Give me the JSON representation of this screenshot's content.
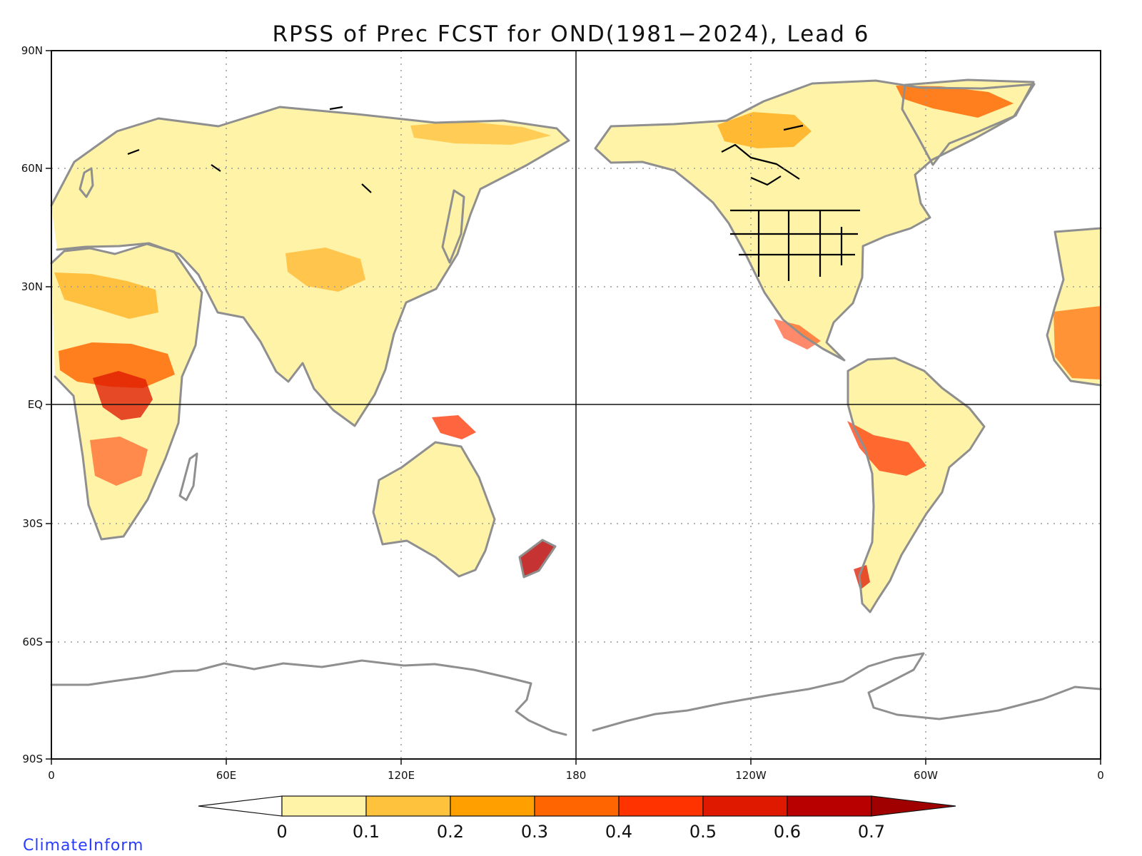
{
  "title": "RPSS of Prec FCST for OND(1981−2024), Lead 6",
  "credit": "ClimateInform",
  "y_ticks": [
    "90N",
    "60N",
    "30N",
    "EQ",
    "30S",
    "60S",
    "90S"
  ],
  "x_ticks": [
    "0",
    "60E",
    "120E",
    "180",
    "120W",
    "60W",
    "0"
  ],
  "colorbar": {
    "labels": [
      "0",
      "0.1",
      "0.2",
      "0.3",
      "0.4",
      "0.5",
      "0.6",
      "0.7"
    ],
    "colors": [
      "#fff3a8",
      "#ffc23d",
      "#ff9f00",
      "#ff6500",
      "#ff3300",
      "#df1800",
      "#b80000",
      "#a00000"
    ],
    "below_color": "#ffffff"
  },
  "colors": {
    "coastline": "#8f8f8f",
    "lakes_borders": "#000000",
    "grid": "#9b9b9b"
  },
  "chart_data": {
    "type": "heatmap",
    "projection": "equirectangular, Pacific-centered (0 to 360 longitude)",
    "title": "RPSS of Prec FCST for OND(1981−2024), Lead 6",
    "variable": "RPSS",
    "lon_range": [
      0,
      360
    ],
    "lat_range": [
      -90,
      90
    ],
    "color_levels": [
      0,
      0.1,
      0.2,
      0.3,
      0.4,
      0.5,
      0.6,
      0.7
    ],
    "grid": true,
    "land_only": true,
    "regions": [
      {
        "lon": [
          10,
          42
        ],
        "lat": [
          -5,
          15
        ],
        "rpss": 0.45
      },
      {
        "lon": [
          5,
          45
        ],
        "lat": [
          -25,
          0
        ],
        "rpss": 0.3
      },
      {
        "lon": [
          0,
          40
        ],
        "lat": [
          18,
          35
        ],
        "rpss": 0.35
      },
      {
        "lon": [
          30,
          190
        ],
        "lat": [
          45,
          75
        ],
        "rpss": 0.15
      },
      {
        "lon": [
          70,
          130
        ],
        "lat": [
          10,
          45
        ],
        "rpss": 0.2
      },
      {
        "lon": [
          115,
          155
        ],
        "lat": [
          -40,
          -10
        ],
        "rpss": 0.15
      },
      {
        "lon": [
          270,
          330
        ],
        "lat": [
          60,
          83
        ],
        "rpss": 0.35
      },
      {
        "lon": [
          190,
          300
        ],
        "lat": [
          40,
          70
        ],
        "rpss": 0.15
      },
      {
        "lon": [
          280,
          320
        ],
        "lat": [
          -25,
          10
        ],
        "rpss": 0.35
      },
      {
        "lon": [
          290,
          310
        ],
        "lat": [
          -55,
          -25
        ],
        "rpss": 0.15
      },
      {
        "lon": [
          170,
          180
        ],
        "lat": [
          -47,
          -35
        ],
        "rpss": 0.5
      }
    ]
  }
}
